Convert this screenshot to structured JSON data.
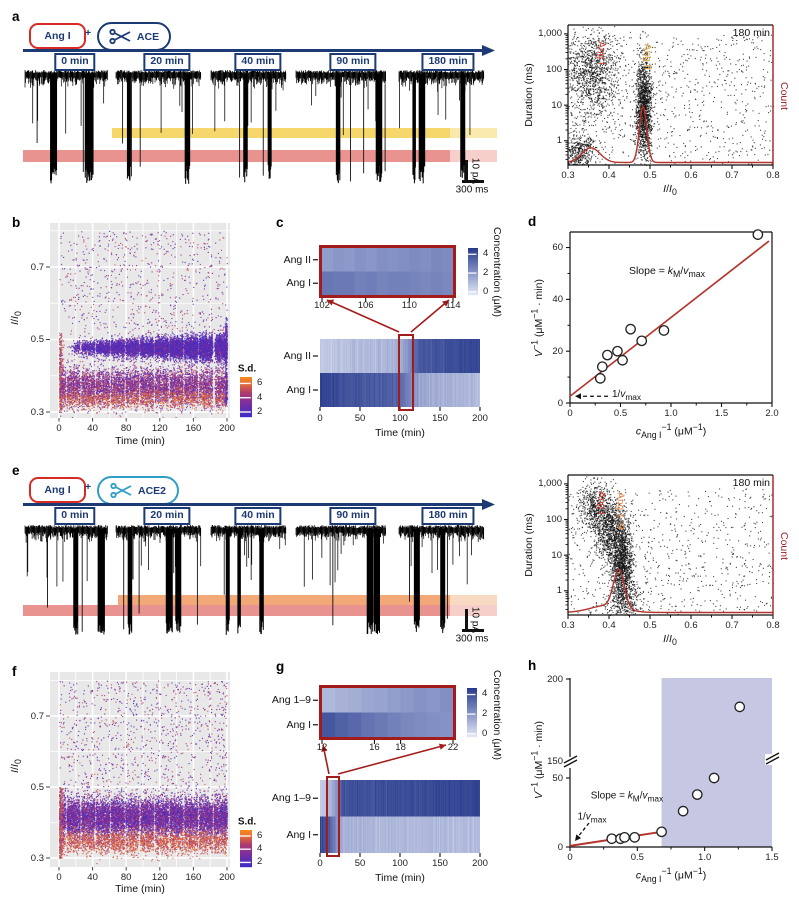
{
  "palette": {
    "navy": "#1c3a74",
    "bright_red": "#d92b24",
    "dark_red": "#9d2026",
    "fit_red": "#b5332b",
    "heat_rect_red": "#a31b1b",
    "plot_gray": "#e9e8e8",
    "ace2_teal": "#2f9ec7",
    "shade_lavender": "#c6c7e2"
  },
  "panel_a": {
    "label": "a",
    "substrate": "Ang I",
    "plus": "+",
    "enzyme": "ACE",
    "timeline": [
      "0 min",
      "20 min",
      "40 min",
      "90 min",
      "180 min"
    ],
    "scale_v": "10 pA",
    "scale_h": "300 ms"
  },
  "panel_b": {
    "label": "b"
  },
  "panel_c": {
    "label": "c"
  },
  "panel_d": {
    "label": "d"
  },
  "panel_e": {
    "label": "e",
    "substrate": "Ang I",
    "plus": "+",
    "enzyme": "ACE2",
    "timeline": [
      "0 min",
      "20 min",
      "40 min",
      "90 min",
      "180 min"
    ],
    "scale_v": "10 pA",
    "scale_h": "300 ms"
  },
  "panel_f": {
    "label": "f"
  },
  "panel_g": {
    "label": "g"
  },
  "panel_h": {
    "label": "h"
  },
  "chart_data": [
    {
      "id": "a-trace",
      "type": "trace",
      "seed": 7,
      "bands": [
        {
          "label": "Ang II current level",
          "color": "#f6d76b",
          "fade": "#fae9ad"
        },
        {
          "label": "Ang I current level",
          "color": "#e99390",
          "fade": "#f6cfcb"
        }
      ]
    },
    {
      "id": "a-scatter",
      "type": "scatter-log",
      "title": "180 min",
      "xlabel_html": "<i>I</i>/<i>I</i><sub>0</sub>",
      "ylabel": "Duration (ms)",
      "y2label": "Count",
      "xlim": [
        0.3,
        0.8
      ],
      "logy_lim": [
        -0.68,
        3.25
      ],
      "xticks": [
        0.3,
        0.4,
        0.5,
        0.6,
        0.7,
        0.8
      ],
      "xtick_labels": [
        "0.3",
        "0.4",
        "0.5",
        "0.6",
        "0.7",
        "0.8"
      ],
      "ytick_logs": [
        0,
        1,
        2,
        3
      ],
      "ytick_labels": [
        "1",
        "10",
        "100",
        "1,000"
      ],
      "peak_labels": [
        {
          "html": "Ang I",
          "x": 0.368,
          "color": "#d23c32"
        },
        {
          "html": "Ang II",
          "x": 0.478,
          "color": "#e2a63d"
        }
      ],
      "clusters": [
        {
          "n": 1100,
          "x": [
            "g",
            0.358,
            0.032
          ],
          "logy": [
            "g",
            1.95,
            0.62
          ]
        },
        {
          "n": 1500,
          "x": [
            "g",
            0.484,
            0.01
          ],
          "logy": [
            "g",
            0.95,
            0.72
          ]
        },
        {
          "n": 450,
          "x": [
            "g",
            0.328,
            0.02
          ],
          "logy": [
            "g",
            -0.33,
            0.28
          ]
        },
        {
          "n": 780,
          "x": [
            "u",
            0.3,
            0.8
          ],
          "logy": [
            "u",
            -0.65,
            3.0
          ]
        }
      ],
      "count_peaks": [
        {
          "x": 0.356,
          "h": 0.105,
          "w": 0.022
        },
        {
          "x": 0.483,
          "h": 0.4,
          "w": 0.009
        }
      ],
      "curve_color": "#b5332b",
      "seed": 11
    },
    {
      "id": "b-density",
      "type": "density",
      "xlabel": "Time (min)",
      "ylabel_html": "<i>I</i>/<i>I</i><sub>0</sub>",
      "xlim": [
        0,
        200
      ],
      "ylim": [
        0.28,
        0.82
      ],
      "xticks": [
        0,
        40,
        80,
        120,
        160,
        200
      ],
      "yticks": [
        0.3,
        0.5,
        0.7
      ],
      "ytick_labels": [
        "0.3",
        "0.5",
        "0.7"
      ],
      "legend": {
        "title": "S.d.",
        "ticks": [
          6,
          4,
          2
        ],
        "range": [
          1.2,
          6.8
        ]
      },
      "gaps": {
        "period": 17.5,
        "offset": 8,
        "w": 0.8
      },
      "bands": [
        {
          "n": 9500,
          "t": [
            "p",
            14,
            200,
            0.62
          ],
          "y": [
            "g",
            0.478,
            0.011
          ],
          "widen": 0.9,
          "sd": [
            "ag",
            1.45,
            1.0
          ]
        },
        {
          "n": 6500,
          "t": [
            "u",
            0,
            200
          ],
          "y": [
            "g",
            0.372,
            0.026
          ],
          "sd": [
            "g",
            3.6,
            1.0
          ]
        },
        {
          "n": 1200,
          "t": [
            "u",
            0,
            200
          ],
          "y": [
            "g",
            0.336,
            0.013
          ],
          "sd": [
            "ag",
            4.8,
            0.9
          ]
        },
        {
          "n": 950,
          "t": [
            "u",
            0,
            200
          ],
          "y": [
            "u",
            0.44,
            0.8
          ],
          "sd": [
            "u",
            1.5,
            5.5
          ]
        },
        {
          "n": 260,
          "t": [
            "g",
            1.5,
            1.2
          ],
          "y": [
            "u",
            0.3,
            0.52
          ],
          "sd": [
            "u",
            3.5,
            6.2
          ]
        },
        {
          "n": 320,
          "t": [
            "g",
            199,
            1.0
          ],
          "y": [
            "u",
            0.32,
            0.56
          ],
          "sd": [
            "u",
            1.4,
            3.2
          ]
        }
      ],
      "seed": 21
    },
    {
      "id": "c-heatmap",
      "type": "heatmap",
      "rows": [
        "Ang II",
        "Ang I"
      ],
      "xlabel": "Time (min)",
      "xlim": [
        0,
        200
      ],
      "xticks": [
        0,
        50,
        100,
        150,
        200
      ],
      "colorbar": {
        "label": "Concentration (μM)",
        "ticks": [
          4,
          2,
          0
        ],
        "range": [
          -0.4,
          4.6
        ]
      },
      "series": [
        {
          "row": "Ang II",
          "points": [
            [
              0,
              0.6
            ],
            [
              100,
              1.2
            ],
            [
              112,
              2.2
            ],
            [
              125,
              3.8
            ],
            [
              200,
              4.3
            ]
          ]
        },
        {
          "row": "Ang I",
          "points": [
            [
              0,
              4.3
            ],
            [
              100,
              3.4
            ],
            [
              112,
              2.5
            ],
            [
              125,
              1.5
            ],
            [
              160,
              1.2
            ],
            [
              200,
              0.9
            ]
          ]
        }
      ],
      "highlight_window": [
        101,
        115
      ],
      "inset": {
        "xlim": [
          102,
          114
        ],
        "xticks": [
          102,
          106,
          110,
          114
        ],
        "cells": [
          {
            "row": "Ang II",
            "values": [
              1.8,
              2.0,
              1.9,
              2.1,
              2.0,
              2.2,
              2.1,
              2.2,
              2.3,
              2.2,
              2.4,
              2.3
            ]
          },
          {
            "row": "Ang I",
            "values": [
              2.9,
              2.8,
              2.8,
              2.6,
              2.7,
              2.5,
              2.6,
              2.6,
              2.5,
              2.4,
              2.5,
              2.4
            ]
          }
        ]
      },
      "seed": 31
    },
    {
      "id": "d-fit",
      "type": "scatter-fit",
      "xlabel_html": "<i>c</i><sub>Ang I</sub><sup>−1</sup> (μM<sup>−1</sup>)",
      "ylabel_html": "<i>V</i><sup>−1</sup> (μM<sup>−1</sup> · min)",
      "xlim": [
        0,
        2
      ],
      "ylim": [
        0,
        66
      ],
      "xticks": [
        0,
        0.5,
        1,
        1.5,
        2
      ],
      "xtick_labels": [
        "0",
        "0.5",
        "1.0",
        "1.5",
        "2.0"
      ],
      "yticks": [
        0,
        20,
        40,
        60
      ],
      "points": [
        [
          0.3,
          9.5
        ],
        [
          0.32,
          14
        ],
        [
          0.37,
          18.5
        ],
        [
          0.47,
          20
        ],
        [
          0.52,
          16.5
        ],
        [
          0.6,
          28.5
        ],
        [
          0.71,
          24
        ],
        [
          0.93,
          28
        ],
        [
          1.86,
          65
        ]
      ],
      "fit": {
        "x1": 0,
        "y1": 2.6,
        "x2": 1.97,
        "y2": 62.5
      },
      "slope_label_html": "Slope = <i>k</i><sub>M</sub>/<i>v</i><sub>max</sub>",
      "intercept_label_html": "1/<i>v</i><sub>max</sub>",
      "line_color": "#b5332b"
    },
    {
      "id": "e-trace",
      "type": "trace",
      "seed": 8,
      "bands": [
        {
          "label": "Ang 1–9 current level",
          "color": "#f2a977",
          "fade": "#f8d9c1"
        },
        {
          "label": "Ang I current level",
          "color": "#e99390",
          "fade": "#f6cfcb"
        }
      ]
    },
    {
      "id": "e-scatter",
      "type": "scatter-log",
      "title": "180 min",
      "xlabel_html": "<i>I</i>/<i>I</i><sub>0</sub>",
      "ylabel": "Duration (ms)",
      "y2label": "Count",
      "xlim": [
        0.3,
        0.8
      ],
      "logy_lim": [
        -0.68,
        3.25
      ],
      "xticks": [
        0.3,
        0.4,
        0.5,
        0.6,
        0.7,
        0.8
      ],
      "xtick_labels": [
        "0.3",
        "0.4",
        "0.5",
        "0.6",
        "0.7",
        "0.8"
      ],
      "ytick_logs": [
        0,
        1,
        2,
        3
      ],
      "ytick_labels": [
        "1",
        "10",
        "100",
        "1,000"
      ],
      "peak_labels": [
        {
          "html": "Ang I",
          "x": 0.368,
          "color": "#d23c32"
        },
        {
          "html": "Ang 1–9",
          "x": 0.41,
          "color": "#ee8a45"
        }
      ],
      "clusters": [
        {
          "n": 520,
          "x": [
            "g",
            0.365,
            0.018
          ],
          "logy": [
            "g",
            2.35,
            0.35
          ]
        },
        {
          "n": 900,
          "x": [
            "g",
            0.405,
            0.018
          ],
          "logy": [
            "g",
            1.7,
            0.45
          ]
        },
        {
          "n": 1250,
          "x": [
            "g",
            0.432,
            0.013
          ],
          "logy": [
            "g",
            0.75,
            0.55
          ]
        },
        {
          "n": 720,
          "x": [
            "u",
            0.3,
            0.8
          ],
          "logy": [
            "u",
            -0.65,
            2.9
          ]
        },
        {
          "n": 350,
          "x": [
            "g",
            0.44,
            0.025
          ],
          "logy": [
            "g",
            -0.3,
            0.3
          ]
        }
      ],
      "count_peaks": [
        {
          "x": 0.424,
          "h": 0.27,
          "w": 0.013
        },
        {
          "x": 0.395,
          "h": 0.05,
          "w": 0.04
        }
      ],
      "curve_color": "#b5332b",
      "seed": 12
    },
    {
      "id": "f-density",
      "type": "density",
      "xlabel": "Time (min)",
      "ylabel_html": "<i>I</i>/<i>I</i><sub>0</sub>",
      "xlim": [
        0,
        200
      ],
      "ylim": [
        0.28,
        0.82
      ],
      "xticks": [
        0,
        40,
        80,
        120,
        160,
        200
      ],
      "yticks": [
        0.3,
        0.5,
        0.7
      ],
      "ytick_labels": [
        "0.3",
        "0.5",
        "0.7"
      ],
      "legend": {
        "title": "S.d.",
        "ticks": [
          6,
          4,
          2
        ],
        "range": [
          1.2,
          6.8
        ]
      },
      "gaps": {
        "period": 17.5,
        "offset": 8,
        "w": 0.8
      },
      "bands": [
        {
          "n": 11000,
          "t": [
            "u",
            0,
            200
          ],
          "y": [
            "g",
            0.415,
            0.027
          ],
          "sd": [
            "g",
            3.0,
            0.9
          ]
        },
        {
          "n": 2600,
          "t": [
            "u",
            0,
            200
          ],
          "y": [
            "g",
            0.347,
            0.017
          ],
          "sd": [
            "ag",
            4.7,
            0.9
          ]
        },
        {
          "n": 1100,
          "t": [
            "u",
            0,
            200
          ],
          "y": [
            "u",
            0.47,
            0.8
          ],
          "sd": [
            "u",
            1.5,
            5.5
          ]
        },
        {
          "n": 300,
          "t": [
            "g",
            1.5,
            1.2
          ],
          "y": [
            "u",
            0.3,
            0.5
          ],
          "sd": [
            "u",
            3.8,
            6.4
          ]
        }
      ],
      "seed": 22
    },
    {
      "id": "g-heatmap",
      "type": "heatmap",
      "rows": [
        "Ang 1–9",
        "Ang I"
      ],
      "xlabel": "Time (min)",
      "xlim": [
        0,
        200
      ],
      "xticks": [
        0,
        50,
        100,
        150,
        200
      ],
      "colorbar": {
        "label": "Concentration (μM)",
        "ticks": [
          4,
          2,
          0
        ],
        "range": [
          -0.4,
          4.6
        ]
      },
      "series": [
        {
          "row": "Ang 1–9",
          "points": [
            [
              0,
              0.5
            ],
            [
              10,
              0.9
            ],
            [
              16,
              1.6
            ],
            [
              22,
              2.3
            ],
            [
              27,
              3.9
            ],
            [
              200,
              4.3
            ]
          ]
        },
        {
          "row": "Ang I",
          "points": [
            [
              0,
              4.3
            ],
            [
              10,
              3.7
            ],
            [
              16,
              2.8
            ],
            [
              22,
              2.1
            ],
            [
              27,
              1.3
            ],
            [
              60,
              1.1
            ],
            [
              200,
              0.9
            ]
          ]
        }
      ],
      "highlight_window": [
        11,
        22
      ],
      "inset": {
        "xlim": [
          12,
          22
        ],
        "xticks": [
          12,
          16,
          18,
          22
        ],
        "cells": [
          {
            "row": "Ang 1–9",
            "values": [
              1.0,
              1.2,
              1.3,
              1.5,
              1.6,
              1.8,
              1.9,
              2.1,
              2.0,
              2.2
            ]
          },
          {
            "row": "Ang I",
            "values": [
              3.8,
              3.5,
              3.3,
              3.0,
              2.8,
              2.6,
              2.4,
              2.3,
              2.2,
              2.1
            ]
          }
        ]
      },
      "seed": 32
    },
    {
      "id": "h-fit",
      "type": "scatter-fit-broken",
      "xlabel_html": "<i>c</i><sub>Ang I</sub><sup>−1</sup> (μM<sup>−1</sup>)",
      "ylabel_html": "<i>V</i><sup>−1</sup> (μM<sup>−1</sup> · min)",
      "xlim": [
        0,
        1.5
      ],
      "xticks": [
        0,
        0.5,
        1,
        1.5
      ],
      "xtick_labels": [
        "0",
        "0.5",
        "1.0",
        "1.5"
      ],
      "y_lower": {
        "lim": [
          0,
          60
        ],
        "ticks": [
          0,
          50
        ]
      },
      "y_upper": {
        "lim": [
          145,
          200
        ],
        "ticks": [
          150,
          200
        ]
      },
      "points_lower": [
        [
          0.31,
          6
        ],
        [
          0.375,
          6
        ],
        [
          0.405,
          7
        ],
        [
          0.48,
          7
        ],
        [
          0.68,
          11
        ],
        [
          0.84,
          26
        ],
        [
          0.945,
          38
        ],
        [
          1.07,
          50
        ]
      ],
      "points_upper": [
        [
          1.26,
          183
        ]
      ],
      "fit": {
        "x1": 0,
        "y1": 0.8,
        "x2": 0.68,
        "y2": 11
      },
      "shade_from_x": 0.68,
      "shade_color": "#c6c7e2",
      "slope_label_html": "Slope = <i>k</i><sub>M</sub>/<i>v</i><sub>max</sub>",
      "intercept_label_html": "1/<i>v</i><sub>max</sub>",
      "line_color": "#b5332b"
    }
  ]
}
